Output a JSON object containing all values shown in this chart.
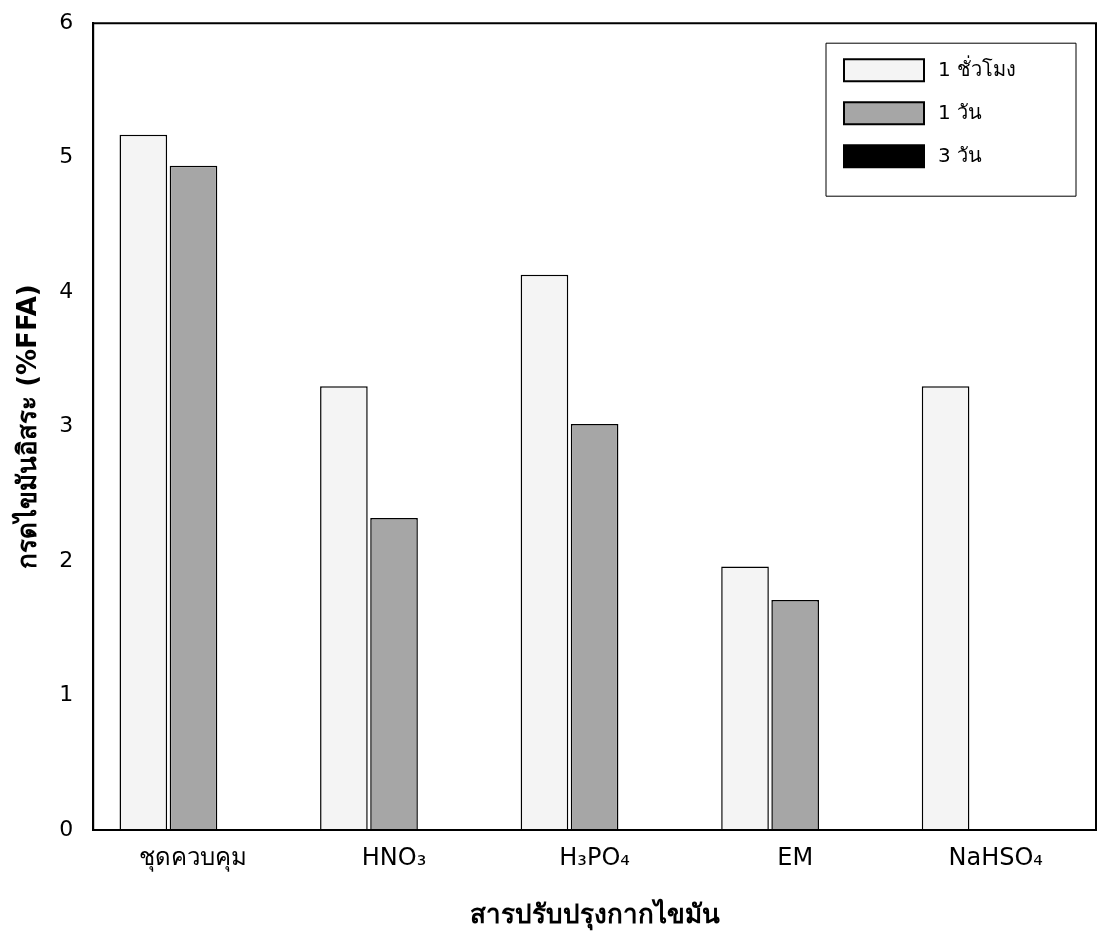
{
  "chart_data": {
    "type": "bar",
    "xlabel": "สารปรับปรุงกากไขมัน",
    "ylabel": "กรดไขมันอิสระ (%FFA)",
    "categories": [
      "ชุดควบคุม",
      "HNO₃",
      "H₃PO₄",
      "EM",
      "NaHSO₄"
    ],
    "series": [
      {
        "name": "1 ชั่วโมง",
        "color": "#f4f4f4",
        "values": [
          5.17,
          3.3,
          4.13,
          1.96,
          3.3
        ]
      },
      {
        "name": "1 วัน",
        "color": "#a6a6a6",
        "values": [
          4.94,
          2.32,
          3.02,
          1.71,
          null
        ]
      },
      {
        "name": "3 วัน",
        "color": "#000000",
        "values": [
          null,
          null,
          null,
          null,
          null
        ]
      }
    ],
    "ylim": [
      0,
      6
    ],
    "yticks": [
      0,
      1,
      2,
      3,
      4,
      5,
      6
    ],
    "grid": false,
    "legend": "top right"
  }
}
